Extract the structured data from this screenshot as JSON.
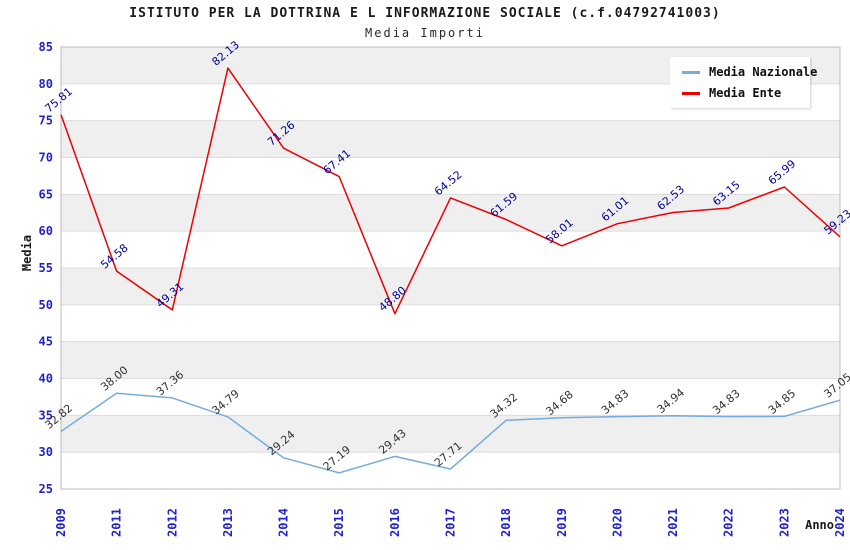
{
  "title": "ISTITUTO PER LA DOTTRINA E L INFORMAZIONE SOCIALE (c.f.04792741003)",
  "subtitle": "Media Importi",
  "legend": {
    "items": [
      {
        "label": "Media Nazionale",
        "color": "#76acdc"
      },
      {
        "label": "Media Ente",
        "color": "#ee0000"
      }
    ]
  },
  "chart_data": {
    "type": "line",
    "title": "ISTITUTO PER LA DOTTRINA E L INFORMAZIONE SOCIALE (c.f.04792741003)",
    "subtitle": "Media Importi",
    "xlabel": "Anno",
    "ylabel": "Media",
    "categories": [
      "2009",
      "2011",
      "2012",
      "2013",
      "2014",
      "2015",
      "2016",
      "2017",
      "2018",
      "2019",
      "2020",
      "2021",
      "2022",
      "2023",
      "2024"
    ],
    "series": [
      {
        "name": "Media Nazionale",
        "color": "#76acdc",
        "label_color": "#303030",
        "values": [
          32.82,
          38.0,
          37.36,
          34.79,
          29.24,
          27.19,
          29.43,
          27.71,
          34.32,
          34.68,
          34.83,
          34.94,
          34.83,
          34.85,
          37.05
        ]
      },
      {
        "name": "Media Ente",
        "color": "#ee0000",
        "label_color": "#000099",
        "values": [
          75.81,
          54.58,
          49.31,
          82.13,
          71.26,
          67.41,
          48.8,
          64.52,
          61.59,
          58.01,
          61.01,
          62.53,
          63.15,
          65.99,
          59.23
        ]
      }
    ],
    "ylim": [
      25,
      85
    ],
    "ytick_step": 5,
    "grid": "horizontal",
    "legend_position": "top-right",
    "band_colors": [
      "#efefef",
      "#ffffff"
    ],
    "colors": {
      "tick_label": "#2222cc",
      "gridline": "#dddddd",
      "plot_border": "#bbbbbb",
      "axis_title": "#1a1a1a"
    }
  }
}
